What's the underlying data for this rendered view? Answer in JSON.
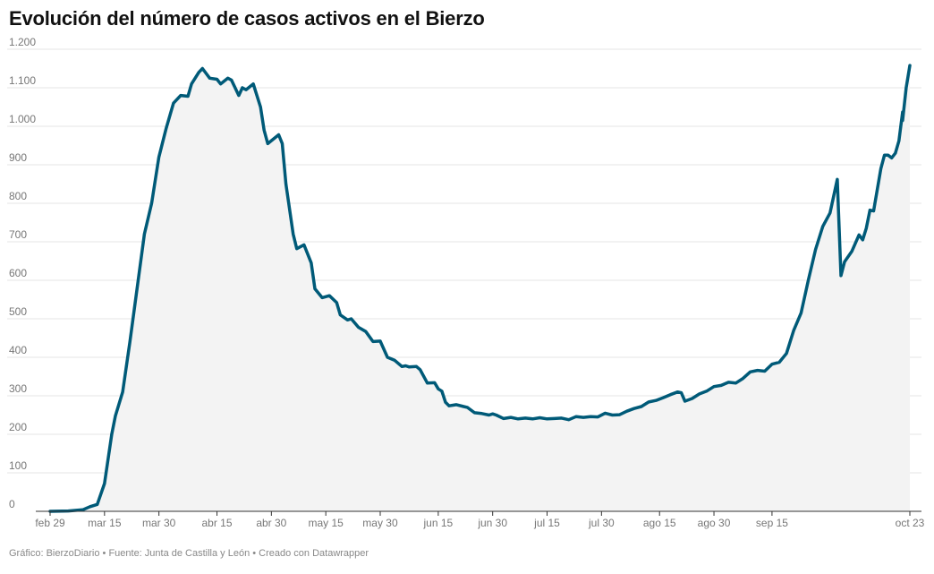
{
  "title": "Evolución del número de casos activos en el Bierzo",
  "footer": "Gráfico: BierzoDiario • Fuente: Junta de Castilla y León • Creado con Datawrapper",
  "colors": {
    "line": "#005a78",
    "area": "#f3f3f3",
    "grid": "#e6e6e6",
    "axis": "#333333"
  },
  "chart_data": {
    "type": "area",
    "title": "Evolución del número de casos activos en el Bierzo",
    "xlabel": "",
    "ylabel": "",
    "ylim": [
      0,
      1200
    ],
    "xlim": [
      "2020-02-29",
      "2020-10-23"
    ],
    "grid": true,
    "y_ticks": [
      {
        "value": 0,
        "label": "0"
      },
      {
        "value": 100,
        "label": "100"
      },
      {
        "value": 200,
        "label": "200"
      },
      {
        "value": 300,
        "label": "300"
      },
      {
        "value": 400,
        "label": "400"
      },
      {
        "value": 500,
        "label": "500"
      },
      {
        "value": 600,
        "label": "600"
      },
      {
        "value": 700,
        "label": "700"
      },
      {
        "value": 800,
        "label": "800"
      },
      {
        "value": 900,
        "label": "900"
      },
      {
        "value": 1000,
        "label": "1.000"
      },
      {
        "value": 1100,
        "label": "1.100"
      },
      {
        "value": 1200,
        "label": "1.200"
      }
    ],
    "x_ticks": [
      {
        "date": "2020-02-29",
        "label": "feb 29"
      },
      {
        "date": "2020-03-15",
        "label": "mar 15"
      },
      {
        "date": "2020-03-30",
        "label": "mar 30"
      },
      {
        "date": "2020-04-15",
        "label": "abr 15"
      },
      {
        "date": "2020-04-30",
        "label": "abr 30"
      },
      {
        "date": "2020-05-15",
        "label": "may 15"
      },
      {
        "date": "2020-05-30",
        "label": "may 30"
      },
      {
        "date": "2020-06-15",
        "label": "jun 15"
      },
      {
        "date": "2020-06-30",
        "label": "jun 30"
      },
      {
        "date": "2020-07-15",
        "label": "jul 15"
      },
      {
        "date": "2020-07-30",
        "label": "jul 30"
      },
      {
        "date": "2020-08-15",
        "label": "ago 15"
      },
      {
        "date": "2020-08-30",
        "label": "ago 30"
      },
      {
        "date": "2020-09-15",
        "label": "sep 15"
      },
      {
        "date": "2020-10-23",
        "label": "oct 23"
      }
    ],
    "series": [
      {
        "values": [
          [
            "2020-02-29",
            0
          ],
          [
            "2020-03-05",
            1
          ],
          [
            "2020-03-09",
            4
          ],
          [
            "2020-03-11",
            12
          ],
          [
            "2020-03-13",
            18
          ],
          [
            "2020-03-15",
            72
          ],
          [
            "2020-03-17",
            200
          ],
          [
            "2020-03-18",
            248
          ],
          [
            "2020-03-20",
            310
          ],
          [
            "2020-03-22",
            440
          ],
          [
            "2020-03-24",
            580
          ],
          [
            "2020-03-26",
            720
          ],
          [
            "2020-03-28",
            800
          ],
          [
            "2020-03-30",
            920
          ],
          [
            "2020-04-01",
            995
          ],
          [
            "2020-04-03",
            1060
          ],
          [
            "2020-04-05",
            1080
          ],
          [
            "2020-04-07",
            1078
          ],
          [
            "2020-04-08",
            1110
          ],
          [
            "2020-04-10",
            1140
          ],
          [
            "2020-04-11",
            1150
          ],
          [
            "2020-04-13",
            1125
          ],
          [
            "2020-04-15",
            1122
          ],
          [
            "2020-04-16",
            1110
          ],
          [
            "2020-04-18",
            1125
          ],
          [
            "2020-04-19",
            1120
          ],
          [
            "2020-04-21",
            1080
          ],
          [
            "2020-04-22",
            1100
          ],
          [
            "2020-04-23",
            1095
          ],
          [
            "2020-04-25",
            1110
          ],
          [
            "2020-04-27",
            1050
          ],
          [
            "2020-04-28",
            990
          ],
          [
            "2020-04-29",
            955
          ],
          [
            "2020-05-02",
            978
          ],
          [
            "2020-05-03",
            955
          ],
          [
            "2020-05-04",
            850
          ],
          [
            "2020-05-06",
            720
          ],
          [
            "2020-05-07",
            682
          ],
          [
            "2020-05-09",
            692
          ],
          [
            "2020-05-11",
            645
          ],
          [
            "2020-05-12",
            578
          ],
          [
            "2020-05-14",
            555
          ],
          [
            "2020-05-16",
            560
          ],
          [
            "2020-05-18",
            542
          ],
          [
            "2020-05-19",
            510
          ],
          [
            "2020-05-21",
            497
          ],
          [
            "2020-05-22",
            500
          ],
          [
            "2020-05-24",
            478
          ],
          [
            "2020-05-26",
            467
          ],
          [
            "2020-05-28",
            441
          ],
          [
            "2020-05-30",
            442
          ],
          [
            "2020-06-01",
            400
          ],
          [
            "2020-06-03",
            392
          ],
          [
            "2020-06-05",
            376
          ],
          [
            "2020-06-06",
            378
          ],
          [
            "2020-06-07",
            375
          ],
          [
            "2020-06-09",
            376
          ],
          [
            "2020-06-10",
            368
          ],
          [
            "2020-06-12",
            333
          ],
          [
            "2020-06-14",
            334
          ],
          [
            "2020-06-15",
            318
          ],
          [
            "2020-06-16",
            312
          ],
          [
            "2020-06-17",
            283
          ],
          [
            "2020-06-18",
            274
          ],
          [
            "2020-06-20",
            277
          ],
          [
            "2020-06-22",
            272
          ],
          [
            "2020-06-23",
            270
          ],
          [
            "2020-06-25",
            256
          ],
          [
            "2020-06-27",
            254
          ],
          [
            "2020-06-29",
            250
          ],
          [
            "2020-06-30",
            253
          ],
          [
            "2020-07-01",
            250
          ],
          [
            "2020-07-03",
            241
          ],
          [
            "2020-07-05",
            244
          ],
          [
            "2020-07-07",
            240
          ],
          [
            "2020-07-09",
            242
          ],
          [
            "2020-07-11",
            240
          ],
          [
            "2020-07-13",
            243
          ],
          [
            "2020-07-15",
            240
          ],
          [
            "2020-07-17",
            241
          ],
          [
            "2020-07-19",
            242
          ],
          [
            "2020-07-21",
            238
          ],
          [
            "2020-07-23",
            246
          ],
          [
            "2020-07-25",
            244
          ],
          [
            "2020-07-27",
            246
          ],
          [
            "2020-07-29",
            245
          ],
          [
            "2020-07-31",
            255
          ],
          [
            "2020-08-02",
            250
          ],
          [
            "2020-08-04",
            251
          ],
          [
            "2020-08-06",
            260
          ],
          [
            "2020-08-08",
            267
          ],
          [
            "2020-08-10",
            272
          ],
          [
            "2020-08-12",
            284
          ],
          [
            "2020-08-14",
            288
          ],
          [
            "2020-08-16",
            295
          ],
          [
            "2020-08-18",
            303
          ],
          [
            "2020-08-20",
            310
          ],
          [
            "2020-08-21",
            308
          ],
          [
            "2020-08-22",
            286
          ],
          [
            "2020-08-24",
            293
          ],
          [
            "2020-08-26",
            305
          ],
          [
            "2020-08-28",
            312
          ],
          [
            "2020-08-30",
            324
          ],
          [
            "2020-09-01",
            327
          ],
          [
            "2020-09-03",
            335
          ],
          [
            "2020-09-05",
            333
          ],
          [
            "2020-09-07",
            345
          ],
          [
            "2020-09-09",
            362
          ],
          [
            "2020-09-11",
            366
          ],
          [
            "2020-09-13",
            364
          ],
          [
            "2020-09-15",
            382
          ],
          [
            "2020-09-17",
            387
          ],
          [
            "2020-09-19",
            410
          ],
          [
            "2020-09-21",
            470
          ],
          [
            "2020-09-23",
            515
          ],
          [
            "2020-09-25",
            600
          ],
          [
            "2020-09-27",
            680
          ],
          [
            "2020-09-29",
            740
          ],
          [
            "2020-10-01",
            775
          ],
          [
            "2020-10-03",
            862
          ],
          [
            "2020-10-04",
            612
          ],
          [
            "2020-10-05",
            648
          ],
          [
            "2020-10-07",
            675
          ],
          [
            "2020-10-09",
            718
          ],
          [
            "2020-10-10",
            705
          ],
          [
            "2020-10-11",
            735
          ],
          [
            "2020-10-12",
            782
          ],
          [
            "2020-10-13",
            780
          ],
          [
            "2020-10-15",
            890
          ],
          [
            "2020-10-16",
            925
          ],
          [
            "2020-10-17",
            925
          ],
          [
            "2020-10-18",
            918
          ],
          [
            "2020-10-19",
            930
          ],
          [
            "2020-10-20",
            962
          ],
          [
            "2020-10-21",
            1037
          ],
          [
            "2020-10-21",
            1015
          ],
          [
            "2020-10-22",
            1100
          ],
          [
            "2020-10-23",
            1158
          ]
        ]
      }
    ]
  }
}
